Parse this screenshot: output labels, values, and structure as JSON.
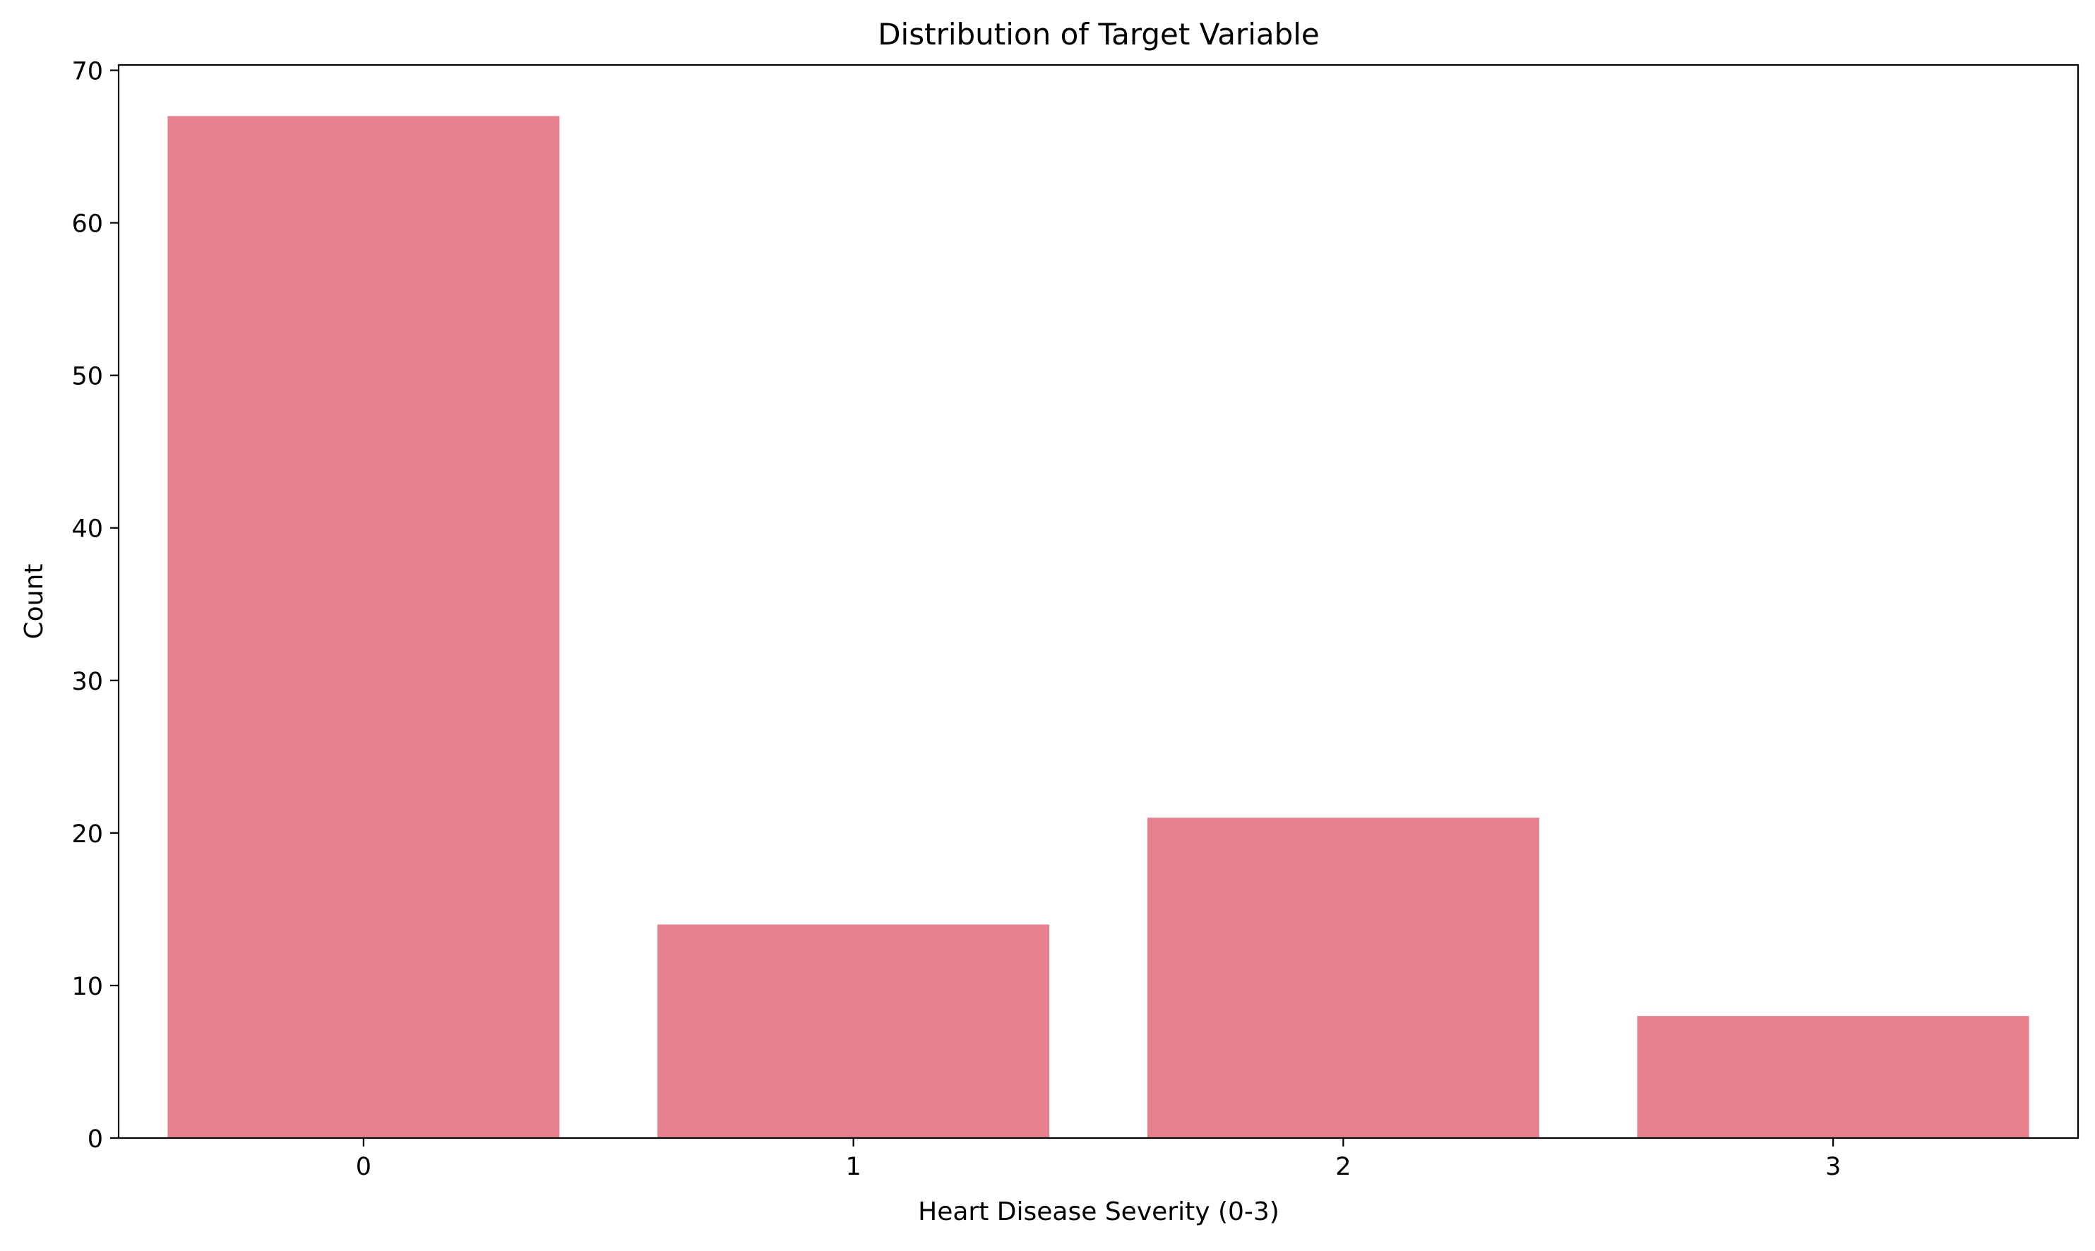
{
  "chart_data": {
    "type": "bar",
    "title": "Distribution of Target Variable",
    "xlabel": "Heart Disease Severity (0-3)",
    "ylabel": "Count",
    "categories": [
      "0",
      "1",
      "2",
      "3"
    ],
    "values": [
      67,
      14,
      21,
      8
    ],
    "ylim": [
      0,
      70.35
    ],
    "yticks": [
      0,
      10,
      20,
      30,
      40,
      50,
      60,
      70
    ],
    "bar_color": "#e7808f",
    "grid": false,
    "legend": "none"
  }
}
